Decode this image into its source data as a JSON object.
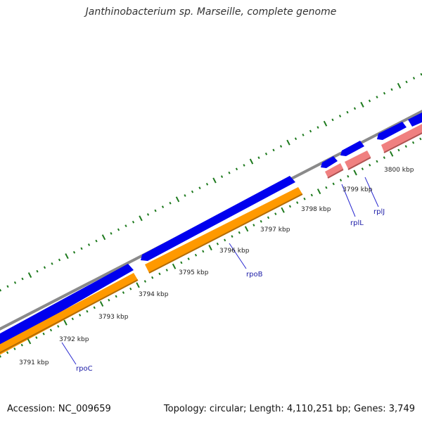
{
  "header": {
    "title": "Janthinobacterium sp. Marseille, complete genome"
  },
  "footer": {
    "accession": "Accession: NC_009659",
    "summary": "Topology: circular; Length: 4,110,251 bp; Genes: 3,749"
  },
  "map": {
    "kbp_labels": [
      "3791 kbp",
      "3792 kbp",
      "3793 kbp",
      "3794 kbp",
      "3795 kbp",
      "3796 kbp",
      "3797 kbp",
      "3798 kbp",
      "3799 kbp",
      "3800 kbp"
    ],
    "gene_labels": [
      "rpoC",
      "rpoB",
      "rplL",
      "rplJ"
    ],
    "colors": {
      "backbone": "#8a8a8a",
      "cds": "#0000ee",
      "gene_orange": "#ff9900",
      "gene_pink": "#f08080",
      "ticks": "#1e7a1e",
      "label_leader": "#2a2ad0"
    }
  }
}
